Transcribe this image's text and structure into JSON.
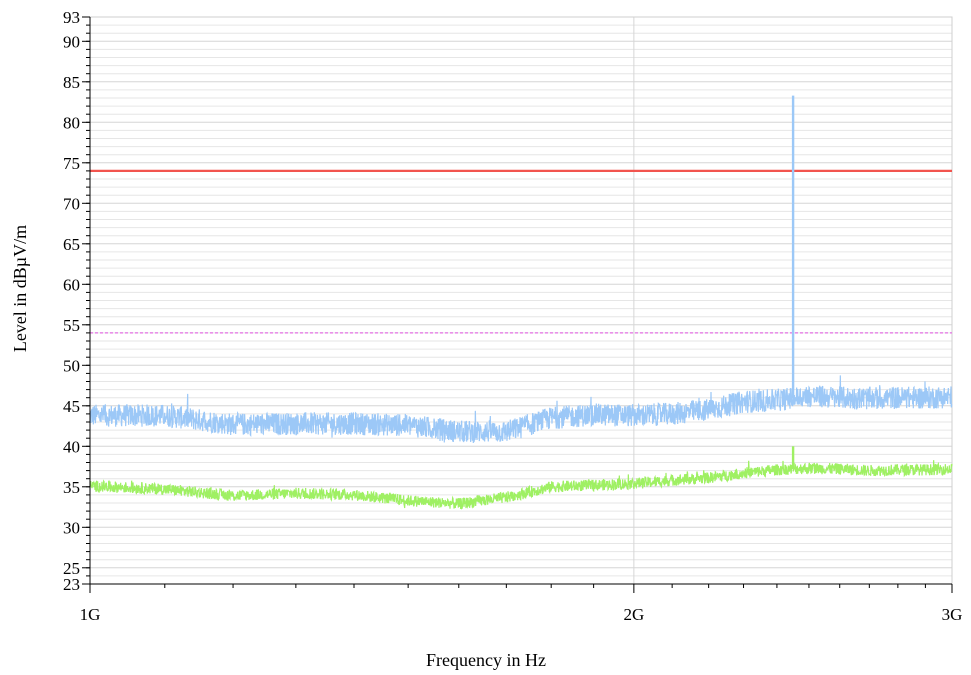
{
  "chart_data": {
    "type": "line",
    "xlabel": "Frequency in Hz",
    "ylabel": "Level in dBµV/m",
    "x_scale": "log",
    "x_unit_multiplier": 1000000000,
    "xlim": [
      1,
      3
    ],
    "ylim": [
      23,
      93
    ],
    "x_ticks": [
      {
        "value": 1,
        "label": "1G"
      },
      {
        "value": 2,
        "label": "2G"
      },
      {
        "value": 3,
        "label": "3G"
      }
    ],
    "y_ticks": [
      {
        "value": 23,
        "label": "23"
      },
      {
        "value": 25,
        "label": "25"
      },
      {
        "value": 30,
        "label": "30"
      },
      {
        "value": 35,
        "label": "35"
      },
      {
        "value": 40,
        "label": "40"
      },
      {
        "value": 45,
        "label": "45"
      },
      {
        "value": 50,
        "label": "50"
      },
      {
        "value": 55,
        "label": "55"
      },
      {
        "value": 60,
        "label": "60"
      },
      {
        "value": 65,
        "label": "65"
      },
      {
        "value": 70,
        "label": "70"
      },
      {
        "value": 75,
        "label": "75"
      },
      {
        "value": 80,
        "label": "80"
      },
      {
        "value": 85,
        "label": "85"
      },
      {
        "value": 90,
        "label": "90"
      },
      {
        "value": 93,
        "label": "93"
      }
    ],
    "grid": true,
    "limit_lines": [
      {
        "value": 74,
        "color": "#f2544e",
        "style": "solid"
      },
      {
        "value": 54,
        "color": "#e36fe3",
        "style": "dashed"
      }
    ],
    "series": [
      {
        "color": "#9cc8f7",
        "noise": 1.4,
        "x": [
          1.0,
          1.1,
          1.2,
          1.3,
          1.4,
          1.5,
          1.6,
          1.7,
          1.8,
          1.9,
          2.0,
          2.1,
          2.2,
          2.3,
          2.4,
          2.5,
          2.6,
          2.7,
          2.8,
          2.9,
          3.0
        ],
        "values": [
          43.8,
          43.8,
          42.7,
          42.8,
          42.8,
          42.6,
          41.8,
          41.8,
          43.5,
          43.9,
          43.8,
          44.0,
          44.5,
          45.5,
          45.7,
          46.2,
          46.0,
          45.9,
          46.0,
          46.0,
          46.1
        ]
      },
      {
        "color": "#9ff063",
        "noise": 0.7,
        "x": [
          1.0,
          1.1,
          1.2,
          1.3,
          1.4,
          1.5,
          1.6,
          1.7,
          1.8,
          1.9,
          2.0,
          2.1,
          2.2,
          2.3,
          2.4,
          2.5,
          2.6,
          2.7,
          2.8,
          2.9,
          3.0
        ],
        "values": [
          35.1,
          34.7,
          33.9,
          34.2,
          34.0,
          33.3,
          32.9,
          33.7,
          35.0,
          35.2,
          35.4,
          35.8,
          36.1,
          36.7,
          37.1,
          37.3,
          37.2,
          37.0,
          37.1,
          37.1,
          37.2
        ]
      }
    ],
    "spikes": [
      {
        "x": 2.45,
        "peak": 83.3,
        "color": "#9cc8f7"
      },
      {
        "x": 2.45,
        "peak": 40.0,
        "color": "#9ff063"
      }
    ]
  }
}
